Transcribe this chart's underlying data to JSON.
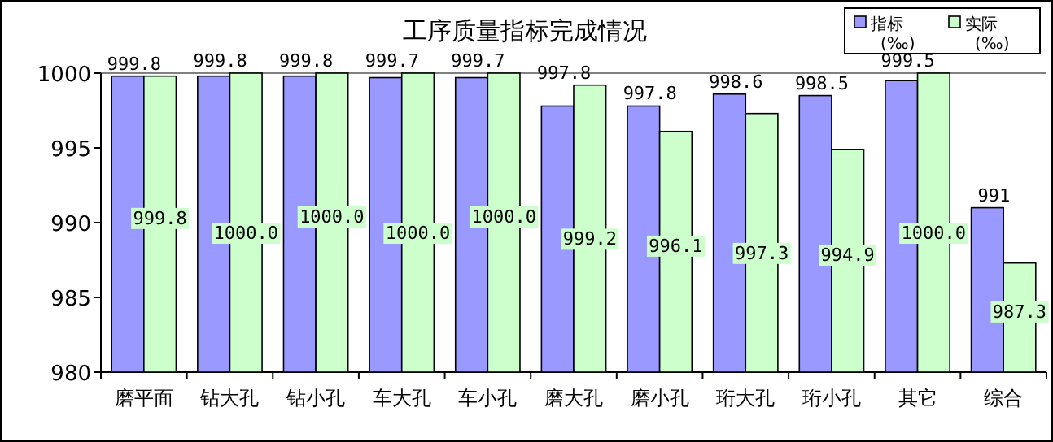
{
  "chart_data": {
    "type": "bar",
    "title": "工序质量指标完成情况",
    "categories": [
      "磨平面",
      "钻大孔",
      "钻小孔",
      "车大孔",
      "车小孔",
      "磨大孔",
      "磨小孔",
      "珩大孔",
      "珩小孔",
      "其它",
      "综合"
    ],
    "series": [
      {
        "name": "指标 (‰)",
        "color": "#9999ff",
        "values": [
          999.8,
          999.8,
          999.8,
          999.7,
          999.7,
          997.8,
          997.8,
          998.6,
          998.5,
          999.5,
          991
        ],
        "value_labels": [
          "999.8",
          "999.8",
          "999.8",
          "999.7",
          "999.7",
          "997.8",
          "997.8",
          "998.6",
          "998.5",
          "999.5",
          "991"
        ]
      },
      {
        "name": "实际 (‰)",
        "color": "#ccffcc",
        "values": [
          999.8,
          1000.0,
          1000.0,
          1000.0,
          1000.0,
          999.2,
          996.1,
          997.3,
          994.9,
          1000.0,
          987.3
        ],
        "value_labels": [
          "999.8",
          "1000.0",
          "1000.0",
          "1000.0",
          "1000.0",
          "999.2",
          "996.1",
          "997.3",
          "994.9",
          "1000.0",
          "987.3"
        ]
      }
    ],
    "ylim": [
      980,
      1000
    ],
    "yticks": [
      980,
      985,
      990,
      995,
      1000
    ],
    "legend": "top right"
  }
}
